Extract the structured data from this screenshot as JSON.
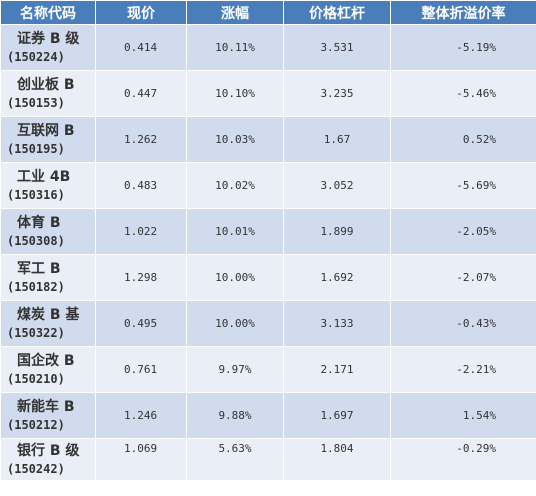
{
  "table": {
    "headers": [
      "名称代码",
      "现价",
      "涨幅",
      "价格杠杆",
      "整体折溢价率"
    ],
    "rows": [
      {
        "name": "证券 B 级",
        "code": "(150224)",
        "price": "0.414",
        "change": "10.11%",
        "leverage": "3.531",
        "premium": "-5.19%"
      },
      {
        "name": "创业板 B",
        "code": "(150153)",
        "price": "0.447",
        "change": "10.10%",
        "leverage": "3.235",
        "premium": "-5.46%"
      },
      {
        "name": "互联网 B",
        "code": "(150195)",
        "price": "1.262",
        "change": "10.03%",
        "leverage": "1.67",
        "premium": "0.52%"
      },
      {
        "name": "工业 4B",
        "code": "(150316)",
        "price": "0.483",
        "change": "10.02%",
        "leverage": "3.052",
        "premium": "-5.69%"
      },
      {
        "name": "体育 B",
        "code": "(150308)",
        "price": "1.022",
        "change": "10.01%",
        "leverage": "1.899",
        "premium": "-2.05%"
      },
      {
        "name": "军工 B",
        "code": "(150182)",
        "price": "1.298",
        "change": "10.00%",
        "leverage": "1.692",
        "premium": "-2.07%"
      },
      {
        "name": "煤炭 B 基",
        "code": "(150322)",
        "price": "0.495",
        "change": "10.00%",
        "leverage": "3.133",
        "premium": "-0.43%"
      },
      {
        "name": "国企改 B",
        "code": "(150210)",
        "price": "0.761",
        "change": "9.97%",
        "leverage": "2.171",
        "premium": "-2.21%"
      },
      {
        "name": "新能车 B",
        "code": "(150212)",
        "price": "1.246",
        "change": "9.88%",
        "leverage": "1.697",
        "premium": "1.54%"
      },
      {
        "name": "银行 B 级",
        "code": "(150242)",
        "price": "1.069",
        "change": "5.63%",
        "leverage": "1.804",
        "premium": "-0.29%"
      }
    ]
  },
  "colors": {
    "header_bg": "#4a7ebb",
    "row_odd": "#d0dbed",
    "row_even": "#e9eef7"
  }
}
